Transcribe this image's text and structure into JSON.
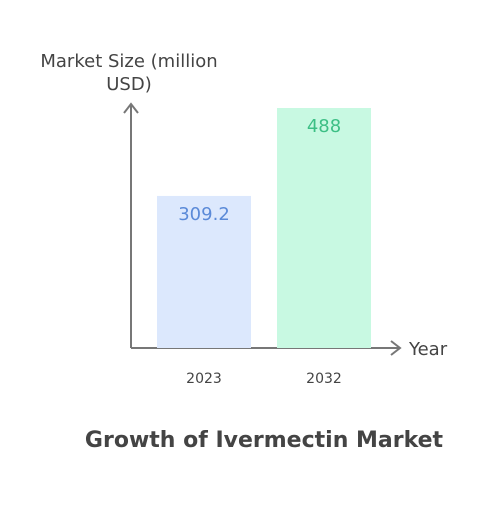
{
  "chart_data": {
    "type": "bar",
    "title": "Growth of Ivermectin Market",
    "y_label": "Market Size (million USD)",
    "x_label": "Year",
    "categories": [
      "2023",
      "2032"
    ],
    "values": [
      309.2,
      488
    ],
    "colors": [
      "#dce8fd",
      "#c8f9e2"
    ],
    "label_colors": [
      "#5b8ad8",
      "#3cbf85"
    ]
  }
}
